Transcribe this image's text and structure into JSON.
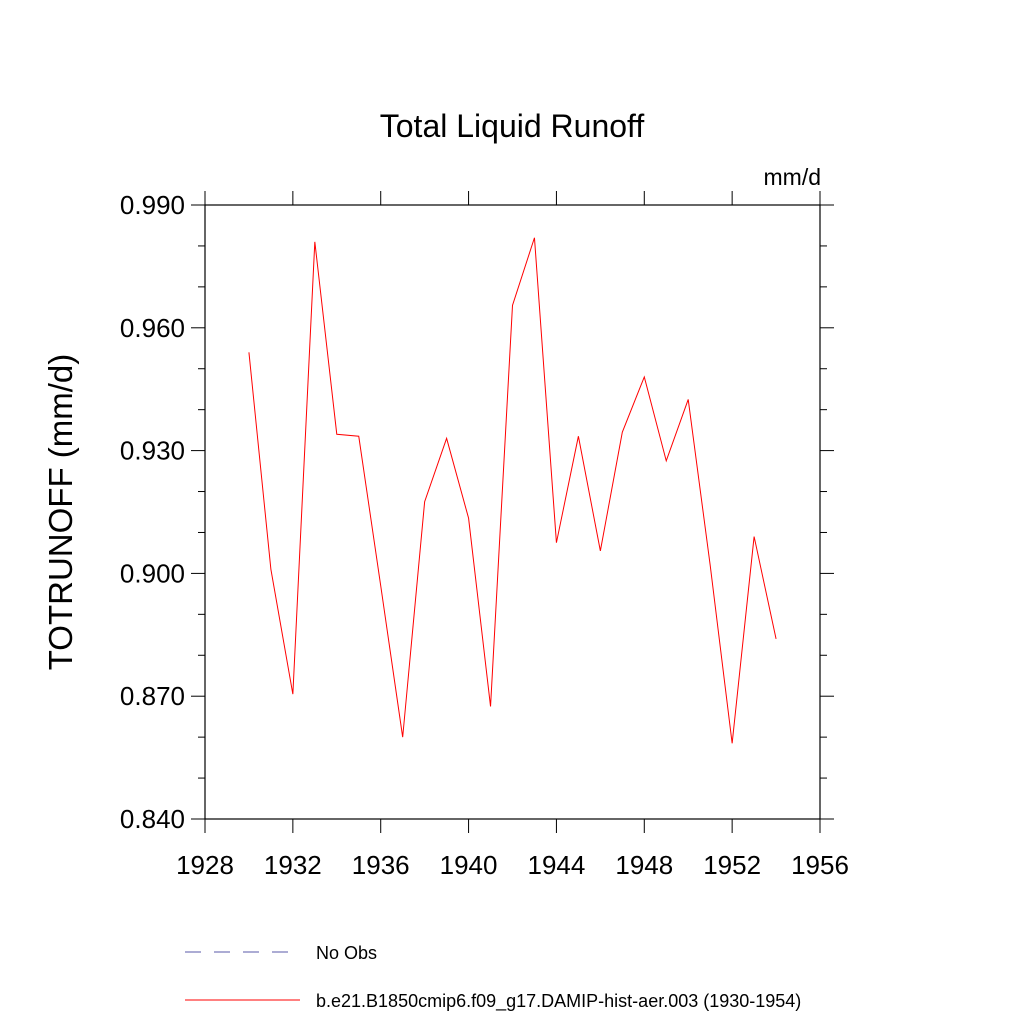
{
  "chart_data": {
    "type": "line",
    "title": "Total Liquid Runoff",
    "units": "mm/d",
    "ylabel": "TOTRUNOFF  (mm/d)",
    "xlabel": "",
    "xlim": [
      1928,
      1956
    ],
    "ylim": [
      0.84,
      0.99
    ],
    "x_ticks": [
      1928,
      1932,
      1936,
      1940,
      1944,
      1948,
      1952,
      1956
    ],
    "x_tick_labels": [
      "1928",
      "1932",
      "1936",
      "1940",
      "1944",
      "1948",
      "1952",
      "1956"
    ],
    "y_ticks": [
      0.84,
      0.87,
      0.9,
      0.93,
      0.96,
      0.99
    ],
    "y_tick_labels": [
      "0.840",
      "0.870",
      "0.900",
      "0.930",
      "0.960",
      "0.990"
    ],
    "grid": false,
    "legend_position": "bottom",
    "series": [
      {
        "name": "b.e21.B1850cmip6.f09_g17.DAMIP-hist-aer.003 (1930-1954)",
        "color": "#ff0000",
        "style": "solid",
        "x": [
          1930,
          1931,
          1932,
          1933,
          1934,
          1935,
          1936,
          1937,
          1938,
          1939,
          1940,
          1941,
          1942,
          1943,
          1944,
          1945,
          1946,
          1947,
          1948,
          1949,
          1950,
          1951,
          1952,
          1953,
          1954
        ],
        "values": [
          0.954,
          0.901,
          0.8705,
          0.981,
          0.934,
          0.9335,
          0.897,
          0.86,
          0.9175,
          0.933,
          0.9135,
          0.8675,
          0.9655,
          0.982,
          0.9075,
          0.9335,
          0.9055,
          0.9345,
          0.948,
          0.9275,
          0.9425,
          0.902,
          0.8585,
          0.909,
          0.884
        ]
      }
    ],
    "legend": [
      {
        "label": "No Obs",
        "color": "#5a5aa8",
        "style": "dashed"
      },
      {
        "label": "b.e21.B1850cmip6.f09_g17.DAMIP-hist-aer.003 (1930-1954)",
        "color": "#ff0000",
        "style": "solid"
      }
    ]
  }
}
